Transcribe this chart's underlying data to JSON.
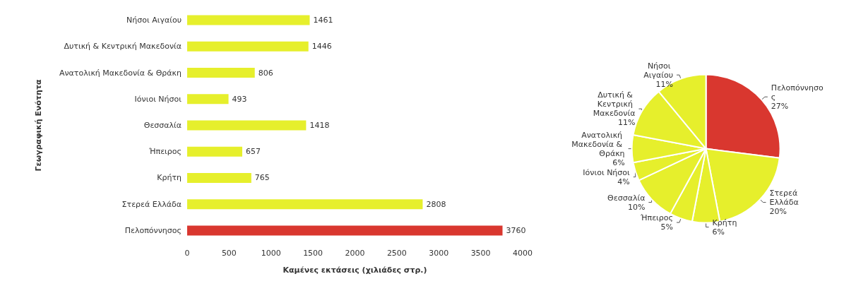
{
  "chart_data": [
    {
      "type": "bar",
      "orientation": "horizontal",
      "ylabel": "Γεωγραφική Ενότητα",
      "xlabel": "Καμένες εκτάσεις (χιλιάδες στρ.)",
      "categories": [
        "Νήσοι Αιγαίου",
        "Δυτική & Κεντρική Μακεδονία",
        "Ανατολική Μακεδονία & Θράκη",
        "Ιόνιοι Νήσοι",
        "Θεσσαλία",
        "Ήπειρος",
        "Κρήτη",
        "Στερεά Ελλάδα",
        "Πελοπόννησος"
      ],
      "values": [
        1461,
        1446,
        806,
        493,
        1418,
        657,
        765,
        2808,
        3760
      ],
      "colors": [
        "#e6ef2c",
        "#e6ef2c",
        "#e6ef2c",
        "#e6ef2c",
        "#e6ef2c",
        "#e6ef2c",
        "#e6ef2c",
        "#e6ef2c",
        "#d9372f"
      ],
      "xlim": [
        0,
        4000
      ],
      "xticks": [
        0,
        500,
        1000,
        1500,
        2000,
        2500,
        3000,
        3500,
        4000
      ],
      "data_labels": true,
      "grid": false,
      "legend": false
    },
    {
      "type": "pie",
      "categories": [
        "Πελοπόννησος",
        "Στερεά Ελλάδα",
        "Κρήτη",
        "Ήπειρος",
        "Θεσσαλία",
        "Ιόνιοι Νήσοι",
        "Ανατολική Μακεδονία & Θράκη",
        "Δυτική & Κεντρική Μακεδονία",
        "Νήσοι Αιγαίου"
      ],
      "values": [
        27,
        20,
        6,
        5,
        10,
        4,
        6,
        11,
        11
      ],
      "value_labels": [
        "27%",
        "20%",
        "6%",
        "5%",
        "10%",
        "4%",
        "6%",
        "11%",
        "11%"
      ],
      "colors": [
        "#d9372f",
        "#e6ef2c",
        "#e6ef2c",
        "#e6ef2c",
        "#e6ef2c",
        "#e6ef2c",
        "#e6ef2c",
        "#e6ef2c",
        "#e6ef2c"
      ],
      "legend": false
    }
  ]
}
